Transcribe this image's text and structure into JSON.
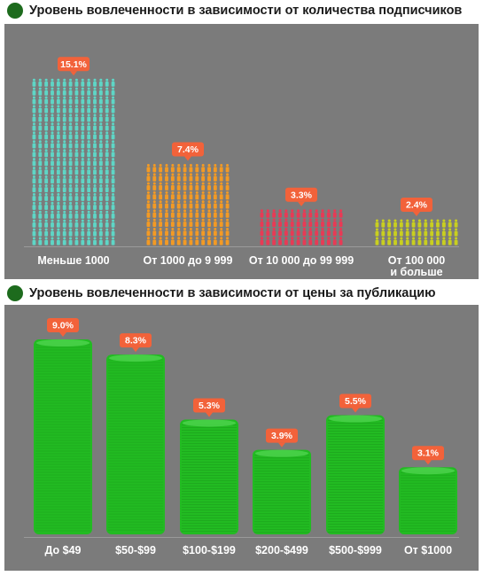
{
  "chart_data": [
    {
      "type": "bar",
      "title": "Уровень вовлеченности в зависимости от количества подписчиков",
      "categories": [
        "Меньше 1000",
        "От 1000 до 9 999",
        "От 10 000 до 99 999",
        "От 100 000\nи больше"
      ],
      "values": [
        15.1,
        7.4,
        3.3,
        2.4
      ],
      "value_labels": [
        "15.1%",
        "7.4%",
        "3.3%",
        "2.4%"
      ],
      "colors": [
        "#5ed6c6",
        "#f39a24",
        "#e83a55",
        "#c9cf1f"
      ],
      "badge_color": "#f2623a",
      "grid": false
    },
    {
      "type": "bar",
      "title": "Уровень вовлеченности в зависимости от цены за публикацию",
      "categories": [
        "До $49",
        "$50-$99",
        "$100-$199",
        "$200-$499",
        "$500-$999",
        "От $1000"
      ],
      "values": [
        9.0,
        8.3,
        5.3,
        3.9,
        5.5,
        3.1
      ],
      "value_labels": [
        "9.0%",
        "8.3%",
        "5.3%",
        "3.9%",
        "5.5%",
        "3.1%"
      ],
      "colors": [
        "#22bb22"
      ],
      "badge_color": "#f2623a",
      "grid": false
    }
  ]
}
